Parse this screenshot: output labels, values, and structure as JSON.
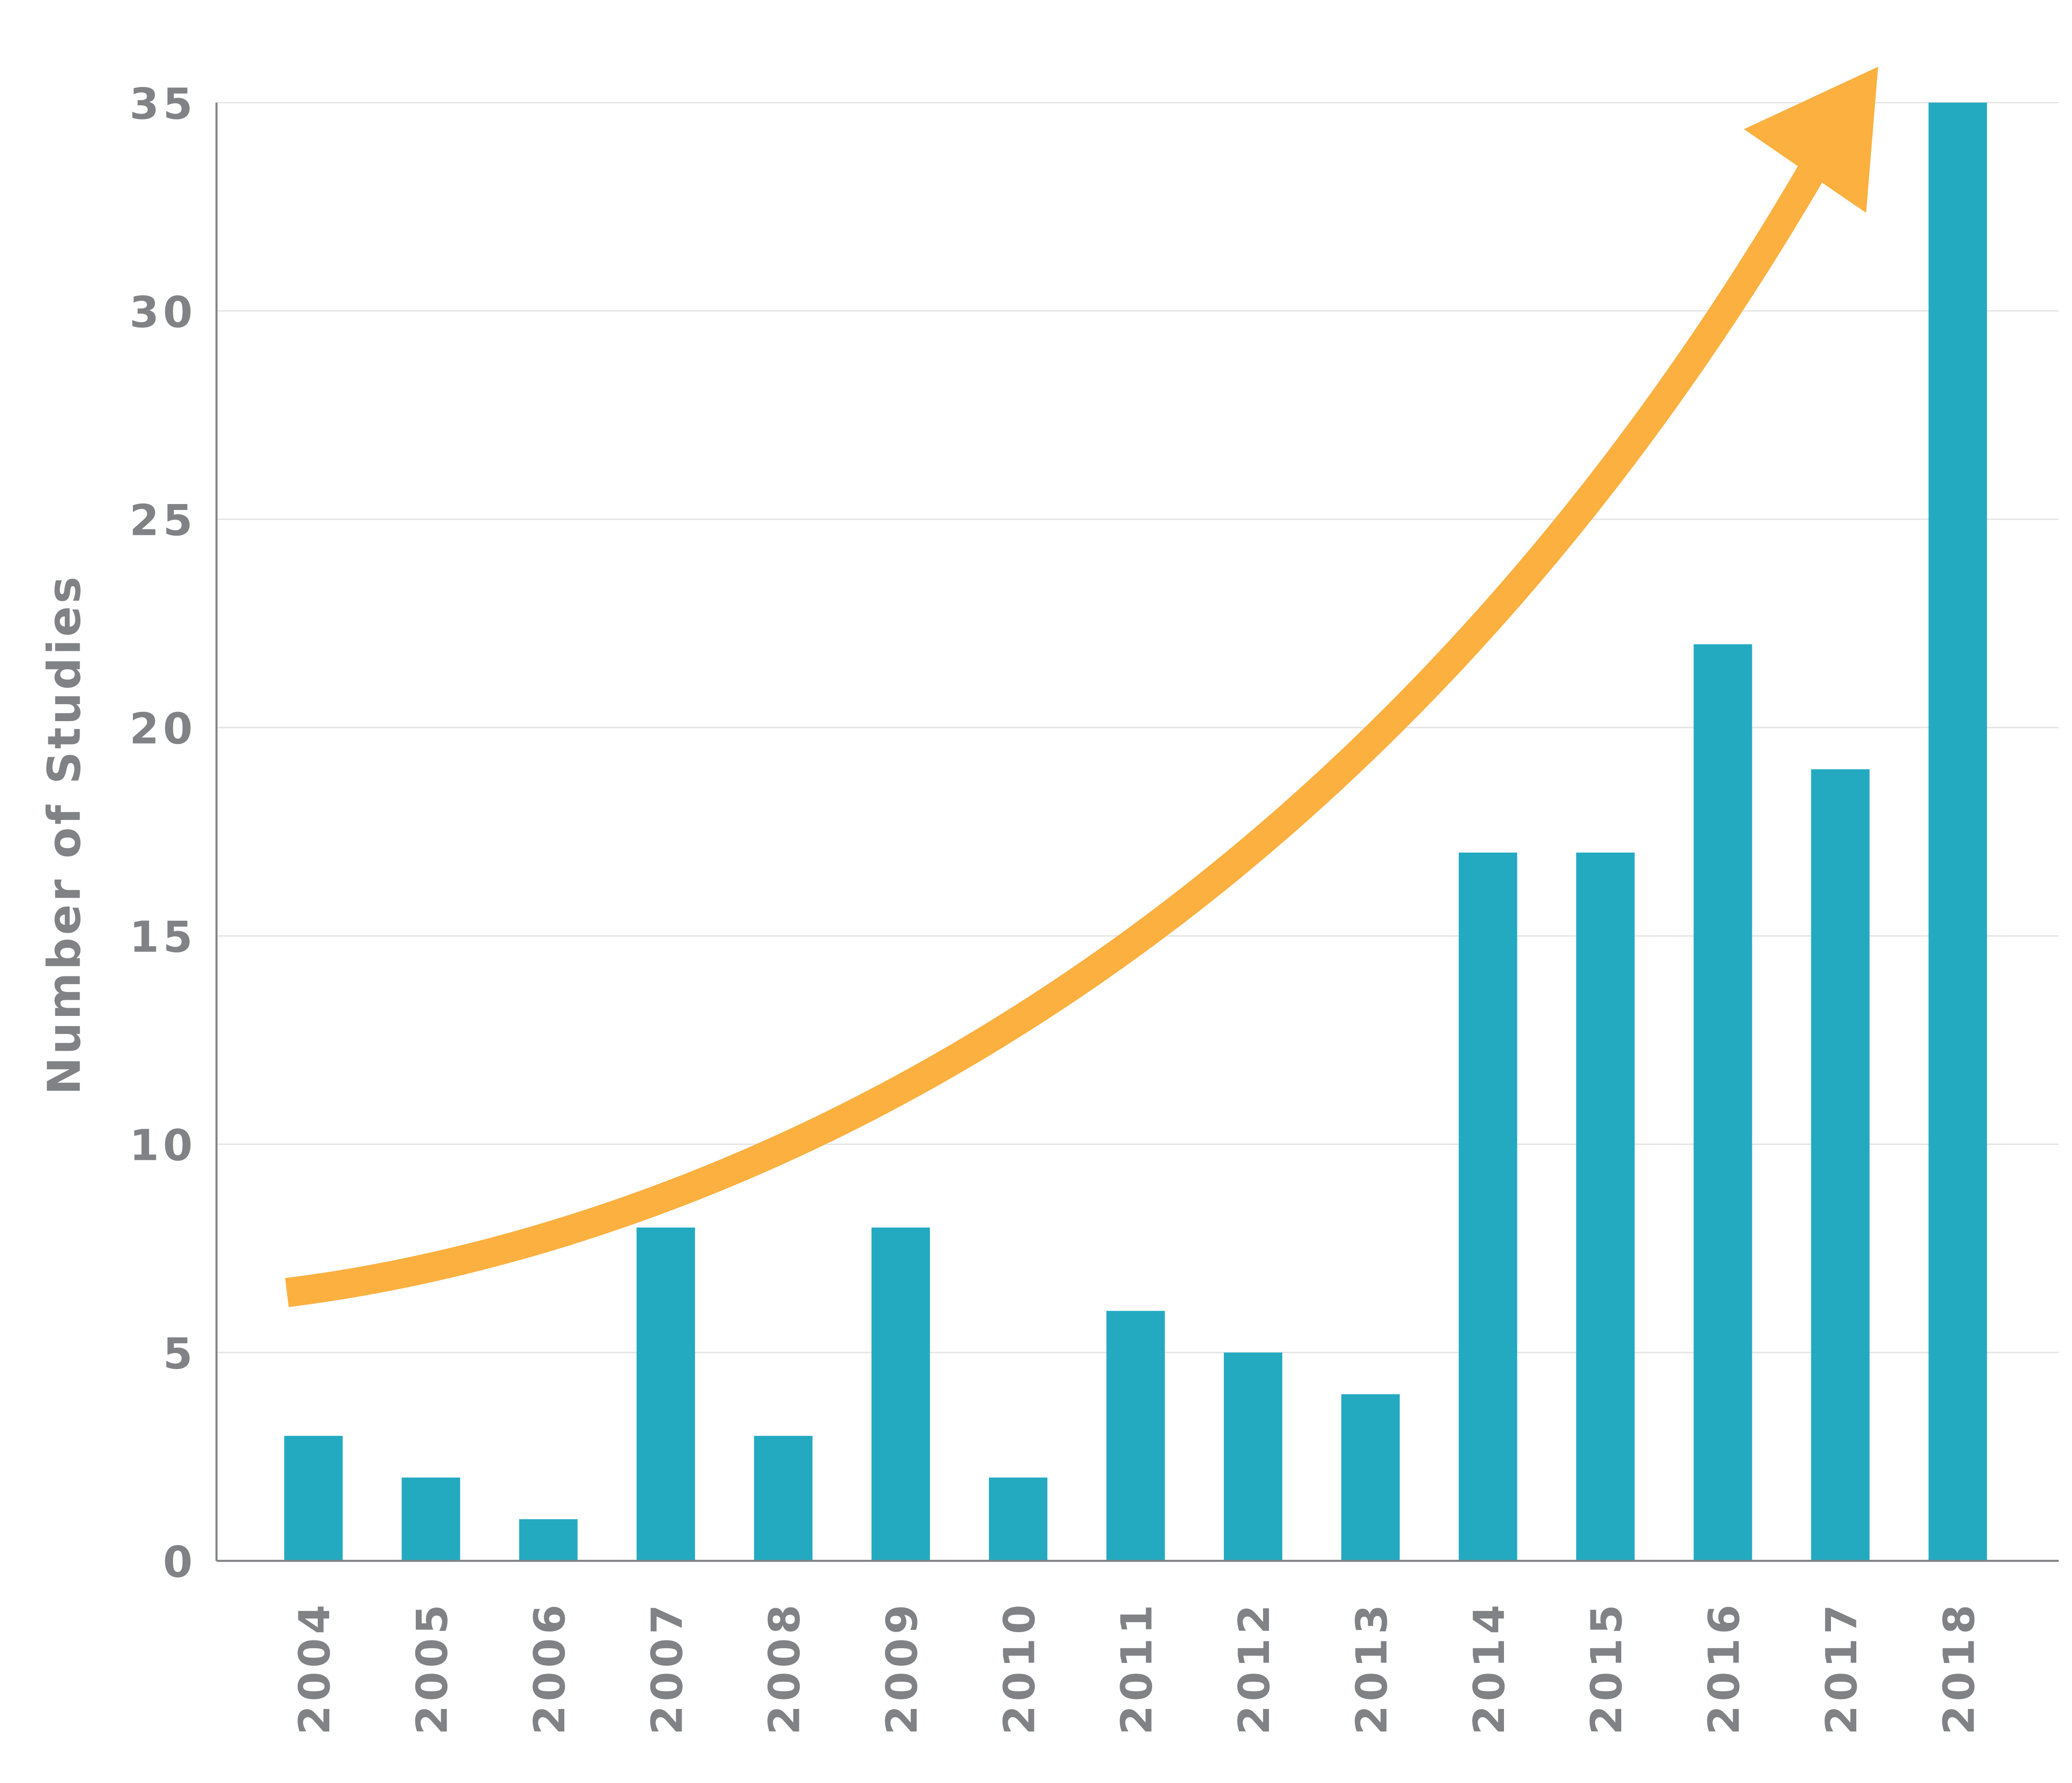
{
  "chart_data": {
    "type": "bar",
    "title": "",
    "xlabel": "",
    "ylabel": "Number of Studies",
    "categories": [
      "2004",
      "2005",
      "2006",
      "2007",
      "2008",
      "2009",
      "2010",
      "2011",
      "2012",
      "2013",
      "2014",
      "2015",
      "2016",
      "2017",
      "2018"
    ],
    "values": [
      3,
      2,
      1,
      8,
      3,
      8,
      2,
      6,
      5,
      4,
      17,
      17,
      22,
      19,
      35
    ],
    "ylim": [
      0,
      35
    ],
    "yticks": [
      0,
      5,
      10,
      15,
      20,
      25,
      30,
      35
    ],
    "grid": "horizontal",
    "legend": "none",
    "annotation": "upward-trend-arrow",
    "colors": {
      "bar": "#23AAC1",
      "arrow": "#FBB040",
      "text": "#808285",
      "grid": "#E3E3E3",
      "axis": "#808285"
    }
  }
}
